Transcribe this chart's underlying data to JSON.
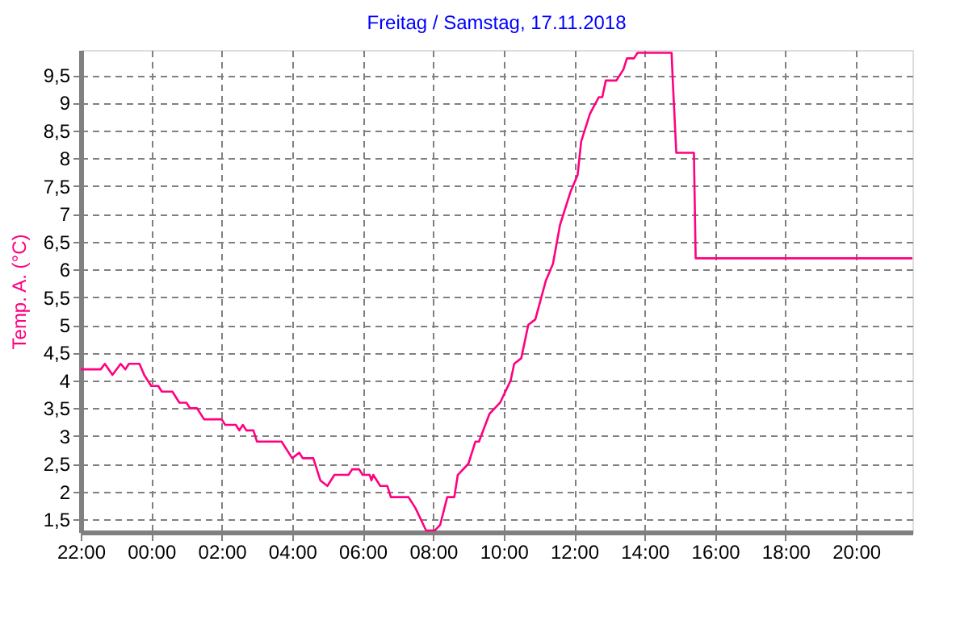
{
  "chart_data": {
    "type": "line",
    "title": "Freitag / Samstag, 17.11.2018",
    "ylabel": "Temp. A.  (°C)",
    "x": [
      "2018-11-16T22:00",
      "2018-11-16T22:34",
      "2018-11-16T22:41",
      "2018-11-16T22:54",
      "2018-11-16T23:08",
      "2018-11-16T23:16",
      "2018-11-16T23:22",
      "2018-11-16T23:40",
      "2018-11-16T23:48",
      "2018-11-17T00:00",
      "2018-11-17T00:12",
      "2018-11-17T00:18",
      "2018-11-17T00:36",
      "2018-11-17T00:48",
      "2018-11-17T01:00",
      "2018-11-17T01:06",
      "2018-11-17T01:18",
      "2018-11-17T01:30",
      "2018-11-17T02:00",
      "2018-11-17T02:06",
      "2018-11-17T02:24",
      "2018-11-17T02:30",
      "2018-11-17T02:36",
      "2018-11-17T02:42",
      "2018-11-17T02:54",
      "2018-11-17T03:00",
      "2018-11-17T03:42",
      "2018-11-17T04:00",
      "2018-11-17T04:12",
      "2018-11-17T04:18",
      "2018-11-17T04:36",
      "2018-11-17T04:48",
      "2018-11-17T05:00",
      "2018-11-17T05:12",
      "2018-11-17T05:36",
      "2018-11-17T05:42",
      "2018-11-17T05:54",
      "2018-11-17T06:00",
      "2018-11-17T06:12",
      "2018-11-17T06:15",
      "2018-11-17T06:18",
      "2018-11-17T06:30",
      "2018-11-17T06:42",
      "2018-11-17T06:48",
      "2018-11-17T07:18",
      "2018-11-17T07:30",
      "2018-11-17T07:48",
      "2018-11-17T08:03",
      "2018-11-17T08:12",
      "2018-11-17T08:24",
      "2018-11-17T08:36",
      "2018-11-17T08:42",
      "2018-11-17T09:00",
      "2018-11-17T09:12",
      "2018-11-17T09:18",
      "2018-11-17T09:36",
      "2018-11-17T09:54",
      "2018-11-17T10:12",
      "2018-11-17T10:18",
      "2018-11-17T10:30",
      "2018-11-17T10:42",
      "2018-11-17T10:54",
      "2018-11-17T11:12",
      "2018-11-17T11:24",
      "2018-11-17T11:36",
      "2018-11-17T11:54",
      "2018-11-17T12:06",
      "2018-11-17T12:12",
      "2018-11-17T12:27",
      "2018-11-17T12:42",
      "2018-11-17T12:48",
      "2018-11-17T12:54",
      "2018-11-17T13:12",
      "2018-11-17T13:24",
      "2018-11-17T13:30",
      "2018-11-17T13:42",
      "2018-11-17T13:48",
      "2018-11-17T14:46",
      "2018-11-17T14:48",
      "2018-11-17T14:54",
      "2018-11-17T15:24",
      "2018-11-17T15:27",
      "2018-11-17T21:36"
    ],
    "series": [
      {
        "color": "#ff0080",
        "values": [
          4.2,
          4.2,
          4.3,
          4.1,
          4.3,
          4.2,
          4.3,
          4.3,
          4.1,
          3.9,
          3.9,
          3.8,
          3.8,
          3.6,
          3.6,
          3.5,
          3.5,
          3.3,
          3.3,
          3.2,
          3.2,
          3.1,
          3.2,
          3.1,
          3.1,
          2.9,
          2.9,
          2.6,
          2.7,
          2.6,
          2.6,
          2.2,
          2.1,
          2.3,
          2.3,
          2.4,
          2.4,
          2.3,
          2.3,
          2.2,
          2.3,
          2.1,
          2.1,
          1.9,
          1.9,
          1.7,
          1.3,
          1.3,
          1.4,
          1.9,
          1.9,
          2.3,
          2.5,
          2.9,
          2.9,
          3.4,
          3.6,
          4.0,
          4.3,
          4.4,
          5.0,
          5.1,
          5.8,
          6.1,
          6.8,
          7.4,
          7.7,
          8.3,
          8.8,
          9.1,
          9.1,
          9.4,
          9.4,
          9.6,
          9.8,
          9.8,
          9.9,
          9.9,
          9.4,
          8.1,
          8.1,
          6.2,
          6.2
        ]
      }
    ],
    "xlim": [
      "2018-11-16T22:00",
      "2018-11-17T21:36"
    ],
    "xticks": [
      {
        "value": "2018-11-16T22:00",
        "label": "22:00"
      },
      {
        "value": "2018-11-17T00:00",
        "label": "00:00"
      },
      {
        "value": "2018-11-17T02:00",
        "label": "02:00"
      },
      {
        "value": "2018-11-17T04:00",
        "label": "04:00"
      },
      {
        "value": "2018-11-17T06:00",
        "label": "06:00"
      },
      {
        "value": "2018-11-17T08:00",
        "label": "08:00"
      },
      {
        "value": "2018-11-17T10:00",
        "label": "10:00"
      },
      {
        "value": "2018-11-17T12:00",
        "label": "12:00"
      },
      {
        "value": "2018-11-17T14:00",
        "label": "14:00"
      },
      {
        "value": "2018-11-17T16:00",
        "label": "16:00"
      },
      {
        "value": "2018-11-17T18:00",
        "label": "18:00"
      },
      {
        "value": "2018-11-17T20:00",
        "label": "20:00"
      }
    ],
    "ylim": [
      1.27,
      9.95
    ],
    "yticks": [
      {
        "value": 1.5,
        "label": "1,5"
      },
      2,
      {
        "value": 2.5,
        "label": "2,5"
      },
      3,
      {
        "value": 3.5,
        "label": "3,5"
      },
      4,
      {
        "value": 4.5,
        "label": "4,5"
      },
      5,
      {
        "value": 5.5,
        "label": "5,5"
      },
      6,
      {
        "value": 6.5,
        "label": "6,5"
      },
      7,
      {
        "value": 7.5,
        "label": "7,5"
      },
      8,
      {
        "value": 8.5,
        "label": "8,5"
      },
      9,
      {
        "value": 9.5,
        "label": "9,5"
      }
    ],
    "grid": true,
    "line_style": "solid",
    "marker": "none"
  }
}
